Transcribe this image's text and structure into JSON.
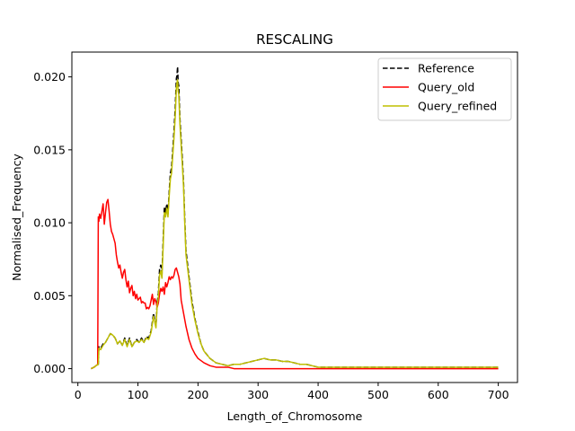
{
  "chart_data": {
    "type": "line",
    "title": "RESCALING",
    "xlabel": "Length_of_Chromosome",
    "ylabel": "Normalised_Frequency",
    "xlim": [
      -10,
      732
    ],
    "ylim": [
      -0.00095,
      0.0217
    ],
    "xticks": [
      0,
      100,
      200,
      300,
      400,
      500,
      600,
      700
    ],
    "xtick_labels": [
      "0",
      "100",
      "200",
      "300",
      "400",
      "500",
      "600",
      "700"
    ],
    "yticks": [
      0.0,
      0.005,
      0.01,
      0.015,
      0.02
    ],
    "ytick_labels": [
      "0.000",
      "0.005",
      "0.010",
      "0.015",
      "0.020"
    ],
    "grid": false,
    "legend_position": "top-right",
    "series": [
      {
        "name": "Reference",
        "color": "#000000",
        "dash": "dashed",
        "x": [
          22,
          27,
          30,
          34,
          35,
          38,
          42,
          46,
          50,
          54,
          58,
          62,
          66,
          70,
          74,
          78,
          82,
          86,
          90,
          94,
          98,
          102,
          106,
          110,
          114,
          118,
          122,
          126,
          130,
          132,
          134,
          136,
          138,
          140,
          142,
          144,
          146,
          148,
          150,
          152,
          154,
          156,
          158,
          160,
          162,
          164,
          165,
          166,
          167,
          168,
          170,
          172,
          174,
          176,
          178,
          180,
          185,
          190,
          195,
          200,
          205,
          210,
          220,
          230,
          240,
          250,
          260,
          270,
          280,
          290,
          300,
          310,
          320,
          330,
          340,
          350,
          360,
          370,
          380,
          390,
          400,
          450,
          500,
          550,
          600,
          650,
          700
        ],
        "y": [
          0.0,
          0.0001,
          0.0002,
          0.0003,
          0.0015,
          0.0014,
          0.0017,
          0.0018,
          0.0021,
          0.0024,
          0.0023,
          0.0021,
          0.0017,
          0.0019,
          0.0016,
          0.0021,
          0.0016,
          0.0021,
          0.0015,
          0.0018,
          0.002,
          0.0018,
          0.0021,
          0.0018,
          0.0022,
          0.0021,
          0.0026,
          0.0038,
          0.0029,
          0.0045,
          0.0052,
          0.0068,
          0.0071,
          0.0065,
          0.0088,
          0.0111,
          0.0107,
          0.0113,
          0.0106,
          0.0121,
          0.0134,
          0.0138,
          0.015,
          0.0163,
          0.0178,
          0.0199,
          0.0201,
          0.0207,
          0.0196,
          0.0194,
          0.0171,
          0.0157,
          0.0143,
          0.0127,
          0.0102,
          0.0081,
          0.0063,
          0.0046,
          0.0034,
          0.0025,
          0.0017,
          0.0012,
          0.0007,
          0.0004,
          0.0003,
          0.0002,
          0.0003,
          0.0003,
          0.0004,
          0.0005,
          0.0006,
          0.0007,
          0.0006,
          0.0006,
          0.0005,
          0.0005,
          0.0004,
          0.0003,
          0.0003,
          0.0002,
          0.0001,
          0.0001,
          0.0001,
          0.0001,
          0.0001,
          0.0001,
          0.0001
        ]
      },
      {
        "name": "Query_old",
        "color": "#ff0000",
        "dash": "solid",
        "x": [
          22,
          27,
          30,
          33,
          34,
          35,
          36,
          38,
          40,
          42,
          44,
          46,
          48,
          50,
          52,
          54,
          56,
          58,
          60,
          62,
          64,
          66,
          68,
          70,
          72,
          74,
          76,
          78,
          80,
          82,
          84,
          86,
          88,
          90,
          92,
          94,
          96,
          98,
          100,
          102,
          104,
          106,
          108,
          110,
          112,
          114,
          116,
          118,
          120,
          122,
          124,
          126,
          128,
          130,
          132,
          134,
          136,
          138,
          140,
          142,
          144,
          146,
          148,
          150,
          152,
          154,
          156,
          158,
          160,
          162,
          164,
          166,
          168,
          170,
          172,
          176,
          180,
          185,
          190,
          195,
          200,
          210,
          220,
          230,
          240,
          250,
          260,
          280,
          300,
          350,
          400,
          450,
          500,
          600,
          700
        ],
        "y": [
          0.0,
          0.0001,
          0.0002,
          0.0003,
          0.0104,
          0.0101,
          0.0106,
          0.0103,
          0.0108,
          0.0113,
          0.0099,
          0.0107,
          0.0114,
          0.0116,
          0.0108,
          0.0099,
          0.0094,
          0.0092,
          0.0089,
          0.0086,
          0.0078,
          0.0073,
          0.0069,
          0.0071,
          0.0066,
          0.0062,
          0.0066,
          0.0068,
          0.0061,
          0.0056,
          0.006,
          0.0052,
          0.0055,
          0.0057,
          0.005,
          0.0053,
          0.0048,
          0.0051,
          0.0047,
          0.0048,
          0.0049,
          0.0045,
          0.0046,
          0.0045,
          0.0045,
          0.0041,
          0.0042,
          0.0041,
          0.0043,
          0.0047,
          0.0051,
          0.0044,
          0.0048,
          0.0046,
          0.0042,
          0.0045,
          0.0051,
          0.0055,
          0.0053,
          0.0056,
          0.0051,
          0.0059,
          0.0056,
          0.0059,
          0.0063,
          0.0061,
          0.0063,
          0.0062,
          0.0064,
          0.0068,
          0.0069,
          0.0066,
          0.0063,
          0.0058,
          0.0047,
          0.0038,
          0.0029,
          0.002,
          0.0014,
          0.001,
          0.0007,
          0.0004,
          0.0002,
          0.0001,
          0.0001,
          0.0001,
          0.0,
          0.0,
          0.0,
          0.0,
          0.0,
          0.0,
          0.0,
          0.0,
          0.0
        ]
      },
      {
        "name": "Query_refined",
        "color": "#bfbf00",
        "dash": "solid",
        "x": [
          22,
          27,
          30,
          34,
          35,
          38,
          42,
          46,
          50,
          54,
          58,
          62,
          66,
          70,
          74,
          78,
          82,
          86,
          90,
          94,
          98,
          102,
          106,
          110,
          114,
          118,
          122,
          126,
          130,
          132,
          134,
          136,
          138,
          140,
          142,
          144,
          146,
          148,
          150,
          152,
          154,
          156,
          158,
          160,
          162,
          164,
          165,
          166,
          167,
          168,
          170,
          172,
          174,
          176,
          178,
          180,
          185,
          190,
          195,
          200,
          205,
          210,
          220,
          230,
          240,
          250,
          260,
          270,
          280,
          290,
          300,
          310,
          320,
          330,
          340,
          350,
          360,
          370,
          380,
          390,
          400,
          450,
          500,
          550,
          600,
          650,
          700
        ],
        "y": [
          0.0,
          0.0001,
          0.0002,
          0.0003,
          0.0014,
          0.0013,
          0.0016,
          0.0018,
          0.0021,
          0.0024,
          0.0023,
          0.0021,
          0.0017,
          0.0019,
          0.0016,
          0.002,
          0.0015,
          0.002,
          0.0015,
          0.0018,
          0.0019,
          0.0018,
          0.002,
          0.0018,
          0.0021,
          0.002,
          0.0025,
          0.0036,
          0.0028,
          0.0043,
          0.0049,
          0.0064,
          0.0067,
          0.0062,
          0.0084,
          0.0107,
          0.0104,
          0.011,
          0.0104,
          0.0118,
          0.013,
          0.0134,
          0.0146,
          0.0158,
          0.0172,
          0.0192,
          0.0196,
          0.0198,
          0.019,
          0.0188,
          0.0167,
          0.0153,
          0.0139,
          0.0124,
          0.0099,
          0.0078,
          0.0061,
          0.0044,
          0.0033,
          0.0024,
          0.0017,
          0.0012,
          0.0007,
          0.0004,
          0.0003,
          0.0002,
          0.0003,
          0.0003,
          0.0004,
          0.0005,
          0.0006,
          0.0007,
          0.0006,
          0.0006,
          0.0005,
          0.0005,
          0.0004,
          0.0003,
          0.0003,
          0.0002,
          0.0001,
          0.0001,
          0.0001,
          0.0001,
          0.0001,
          0.0001,
          0.0001
        ]
      }
    ]
  }
}
